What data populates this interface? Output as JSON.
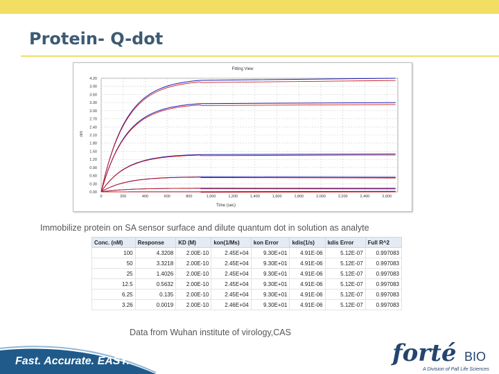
{
  "slide": {
    "title": "Protein- Q-dot",
    "caption": "Immobilize protein on SA sensor surface and dilute quantum dot in solution as analyte",
    "source_note": "Data from Wuhan institute of virology,CAS",
    "tagline": "Fast. Accurate. EASY.",
    "logo_text": "forté",
    "logo_suffix": "BIO",
    "logo_subtext": "A Division of Pall Life Sciences",
    "colors": {
      "band": "#f2de63",
      "title": "#3d5a73",
      "footer": "#1f5a8a",
      "logo": "#24456e"
    }
  },
  "chart_data": {
    "type": "line",
    "title": "Fitting View",
    "xlabel": "Time (sec)",
    "ylabel": "nm",
    "xlim": [
      0,
      2700
    ],
    "ylim": [
      0,
      4.2
    ],
    "x_ticks": [
      "0",
      "200",
      "400",
      "600",
      "800",
      "1,000",
      "1,200",
      "1,400",
      "1,600",
      "1,800",
      "2,000",
      "2,200",
      "2,400",
      "2,600"
    ],
    "y_ticks": [
      "0.00",
      "0.30",
      "0.60",
      "0.90",
      "1.20",
      "1.50",
      "1.80",
      "2.10",
      "2.40",
      "2.70",
      "3.00",
      "3.30",
      "3.60",
      "3.90",
      "4.20"
    ],
    "grid": true,
    "series_colors": {
      "data": "#1a1ab0",
      "fit": "#d01a1a"
    },
    "association_end": 900,
    "series": [
      {
        "conc_nM": 100,
        "values_plateau": 4.3208,
        "dissoc_end": 4.25
      },
      {
        "conc_nM": 50,
        "values_plateau": 3.3218,
        "dissoc_end": 3.3
      },
      {
        "conc_nM": 25,
        "values_plateau": 1.4026,
        "dissoc_end": 1.4
      },
      {
        "conc_nM": 12.5,
        "values_plateau": 0.5632,
        "dissoc_end": 0.54
      },
      {
        "conc_nM": 6.25,
        "values_plateau": 0.135,
        "dissoc_end": 0.13
      },
      {
        "conc_nM": 3.26,
        "values_plateau": 0.0019,
        "dissoc_end": 0.02
      }
    ]
  },
  "table": {
    "headers": [
      "Conc. (nM)",
      "Response",
      "KD (M)",
      "kon(1/Ms)",
      "kon Error",
      "kdis(1/s)",
      "kdis Error",
      "Full R^2"
    ],
    "rows": [
      [
        "100",
        "4.3208",
        "2.00E-10",
        "2.45E+04",
        "9.30E+01",
        "4.91E-06",
        "5.12E-07",
        "0.997083"
      ],
      [
        "50",
        "3.3218",
        "2.00E-10",
        "2.45E+04",
        "9.30E+01",
        "4.91E-06",
        "5.12E-07",
        "0.997083"
      ],
      [
        "25",
        "1.4026",
        "2.00E-10",
        "2.45E+04",
        "9.30E+01",
        "4.91E-06",
        "5.12E-07",
        "0.997083"
      ],
      [
        "12.5",
        "0.5632",
        "2.00E-10",
        "2.45E+04",
        "9.30E+01",
        "4.91E-06",
        "5.12E-07",
        "0.997083"
      ],
      [
        "6.25",
        "0.135",
        "2.00E-10",
        "2.45E+04",
        "9.30E+01",
        "4.91E-06",
        "5.12E-07",
        "0.997083"
      ],
      [
        "3.26",
        "0.0019",
        "2.00E-10",
        "2.46E+04",
        "9.30E+01",
        "4.91E-06",
        "5.12E-07",
        "0.997083"
      ]
    ]
  }
}
